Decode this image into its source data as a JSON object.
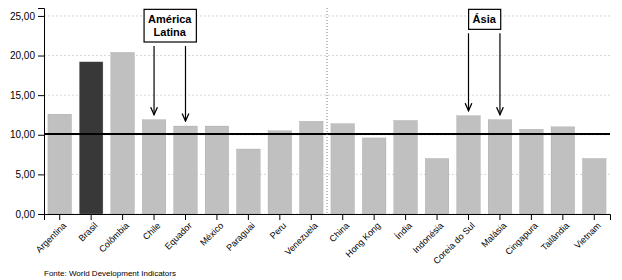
{
  "chart_data": {
    "type": "bar",
    "categories": [
      "Argentina",
      "Brasil",
      "Colômbia",
      "Chile",
      "Equador",
      "México",
      "Paraguai",
      "Peru",
      "Venezuela",
      "China",
      "Hong Kong",
      "Índia",
      "Indonésia",
      "Coreia do Sul",
      "Malásia",
      "Cingapura",
      "Tailândia",
      "Vietnam"
    ],
    "values": [
      12.6,
      19.2,
      20.4,
      11.9,
      11.1,
      11.1,
      8.2,
      10.5,
      11.7,
      11.4,
      9.6,
      11.8,
      7.0,
      12.4,
      11.9,
      10.7,
      11.0,
      7.0
    ],
    "colors": [
      "#c0c0c0",
      "#383838",
      "#c0c0c0",
      "#c0c0c0",
      "#c0c0c0",
      "#c0c0c0",
      "#c0c0c0",
      "#c0c0c0",
      "#c0c0c0",
      "#c0c0c0",
      "#c0c0c0",
      "#c0c0c0",
      "#c0c0c0",
      "#c0c0c0",
      "#c0c0c0",
      "#c0c0c0",
      "#c0c0c0",
      "#c0c0c0"
    ],
    "ylim": [
      0,
      26
    ],
    "yticks": [
      {
        "value": 0.0,
        "label": "0,00"
      },
      {
        "value": 5.0,
        "label": "5,00"
      },
      {
        "value": 10.0,
        "label": "10,00"
      },
      {
        "value": 15.0,
        "label": "15,00"
      },
      {
        "value": 20.0,
        "label": "20,00"
      },
      {
        "value": 25.0,
        "label": "25,00"
      }
    ],
    "grid": true,
    "hline": 10.1,
    "vline": 8.5,
    "annotations": [
      {
        "text": "América\nLatina",
        "targets": [
          "Chile",
          "Equador"
        ]
      },
      {
        "text": "Ásia",
        "targets": [
          "Coreia do Sul",
          "Malásia"
        ]
      }
    ],
    "source": "Fonte: World Development Indicators"
  }
}
